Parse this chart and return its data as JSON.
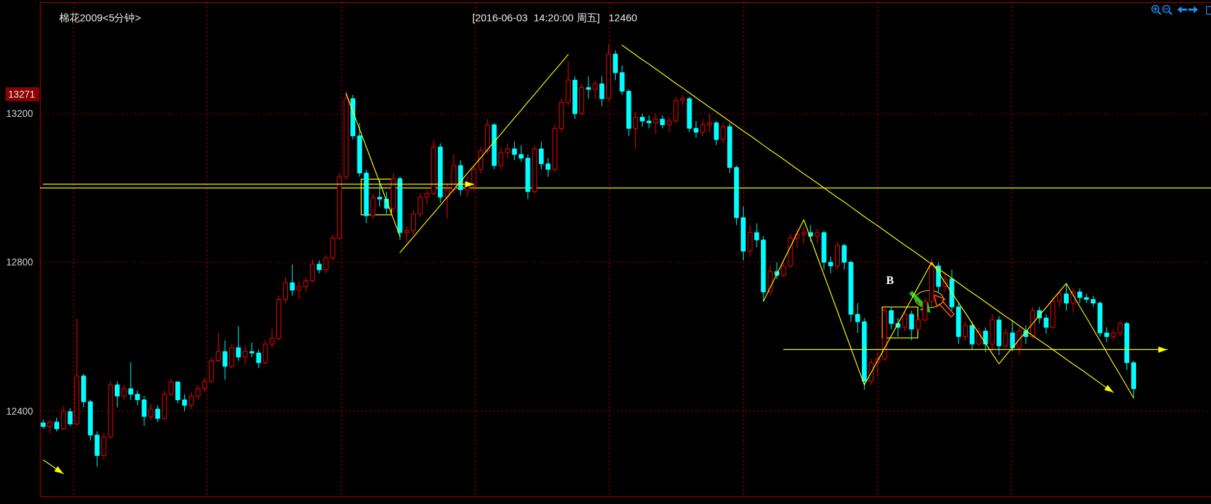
{
  "chart_data": {
    "type": "candlestick",
    "title": "棉花2009<5分钟>",
    "subtitle": "[2016-06-03  14:20:00 周五]   12460",
    "categories": [
      null,
      null,
      null,
      null,
      null,
      null,
      null,
      null,
      null,
      null,
      null,
      null,
      null,
      null,
      null,
      null,
      null,
      null,
      null,
      null,
      null,
      null,
      null,
      null,
      null,
      null,
      null,
      null,
      null,
      null,
      null,
      null,
      null,
      null,
      null,
      null,
      null,
      null,
      null,
      null,
      null,
      null,
      null,
      null,
      null,
      null,
      null,
      null,
      null,
      null,
      null,
      null,
      null,
      null,
      null,
      null,
      null,
      null,
      null,
      null,
      null,
      null,
      null,
      null,
      null,
      null,
      null,
      null,
      null,
      null,
      null,
      null,
      null,
      null,
      null,
      null,
      null,
      null,
      null,
      null,
      null,
      null,
      null,
      null,
      null,
      null,
      null,
      null,
      null,
      null,
      null,
      null,
      null,
      null,
      null,
      null,
      null,
      null,
      null,
      null,
      null,
      null,
      null,
      null,
      null,
      null,
      null,
      null,
      null,
      null,
      null,
      null,
      null,
      null,
      null,
      null,
      null,
      null,
      null,
      null,
      null,
      null,
      null,
      null,
      null,
      null,
      null,
      null,
      null,
      null,
      null,
      null,
      null,
      null,
      null,
      null,
      null,
      null,
      null,
      null,
      null,
      null,
      null,
      null,
      null,
      null,
      null,
      null,
      null,
      null,
      null,
      null,
      null,
      null,
      null,
      null,
      null,
      null,
      null,
      null,
      null,
      null,
      null,
      null,
      null,
      null,
      null,
      null,
      null,
      null,
      null,
      null,
      null,
      null
    ],
    "ohlc": [
      [
        12368,
        12378,
        12352,
        12358
      ],
      [
        12358,
        12375,
        12340,
        12370
      ],
      [
        12370,
        12382,
        12345,
        12352
      ],
      [
        12352,
        12412,
        12348,
        12398
      ],
      [
        12398,
        12408,
        12360,
        12365
      ],
      [
        12365,
        12649,
        12360,
        12494
      ],
      [
        12494,
        12500,
        12410,
        12425
      ],
      [
        12425,
        12430,
        12320,
        12335
      ],
      [
        12335,
        12345,
        12250,
        12280
      ],
      [
        12280,
        12340,
        12268,
        12330
      ],
      [
        12330,
        12480,
        12325,
        12470
      ],
      [
        12470,
        12480,
        12410,
        12440
      ],
      [
        12440,
        12470,
        12430,
        12460
      ],
      [
        12460,
        12531,
        12430,
        12445
      ],
      [
        12445,
        12455,
        12415,
        12430
      ],
      [
        12430,
        12440,
        12360,
        12385
      ],
      [
        12385,
        12420,
        12375,
        12405
      ],
      [
        12405,
        12415,
        12370,
        12380
      ],
      [
        12380,
        12455,
        12375,
        12445
      ],
      [
        12445,
        12486,
        12440,
        12478
      ],
      [
        12478,
        12480,
        12420,
        12430
      ],
      [
        12430,
        12445,
        12400,
        12415
      ],
      [
        12415,
        12450,
        12405,
        12440
      ],
      [
        12440,
        12470,
        12430,
        12460
      ],
      [
        12460,
        12490,
        12450,
        12480
      ],
      [
        12480,
        12545,
        12475,
        12535
      ],
      [
        12535,
        12610,
        12530,
        12560
      ],
      [
        12560,
        12590,
        12484,
        12520
      ],
      [
        12520,
        12580,
        12515,
        12570
      ],
      [
        12570,
        12628,
        12535,
        12545
      ],
      [
        12545,
        12575,
        12525,
        12560
      ],
      [
        12560,
        12584,
        12545,
        12556
      ],
      [
        12556,
        12565,
        12515,
        12530
      ],
      [
        12530,
        12590,
        12525,
        12580
      ],
      [
        12580,
        12620,
        12570,
        12595
      ],
      [
        12595,
        12710,
        12590,
        12700
      ],
      [
        12700,
        12760,
        12690,
        12745
      ],
      [
        12745,
        12794,
        12710,
        12725
      ],
      [
        12725,
        12750,
        12700,
        12735
      ],
      [
        12735,
        12760,
        12720,
        12750
      ],
      [
        12750,
        12808,
        12745,
        12795
      ],
      [
        12795,
        12805,
        12770,
        12780
      ],
      [
        12780,
        12820,
        12770,
        12812
      ],
      [
        12812,
        12875,
        12805,
        12865
      ],
      [
        12865,
        13040,
        12860,
        13030
      ],
      [
        13030,
        13260,
        13020,
        13240
      ],
      [
        13240,
        13250,
        13130,
        13140
      ],
      [
        13140,
        13175,
        13030,
        13040
      ],
      [
        13040,
        13050,
        12905,
        12925
      ],
      [
        12925,
        12985,
        12915,
        12975
      ],
      [
        12975,
        13020,
        12950,
        12970
      ],
      [
        12970,
        12990,
        12930,
        12945
      ],
      [
        12945,
        13040,
        12935,
        13025
      ],
      [
        13025,
        13030,
        12860,
        12880
      ],
      [
        12880,
        12895,
        12855,
        12885
      ],
      [
        12885,
        12940,
        12875,
        12930
      ],
      [
        12930,
        12985,
        12920,
        12975
      ],
      [
        12975,
        12995,
        12955,
        12985
      ],
      [
        12985,
        13130,
        12980,
        13110
      ],
      [
        13110,
        13120,
        12960,
        12975
      ],
      [
        12975,
        13010,
        12918,
        12995
      ],
      [
        12995,
        13090,
        12985,
        13060
      ],
      [
        13060,
        13075,
        12980,
        12995
      ],
      [
        12995,
        13030,
        12975,
        13005
      ],
      [
        13005,
        13060,
        12990,
        13050
      ],
      [
        13050,
        13110,
        13040,
        13100
      ],
      [
        13100,
        13185,
        13090,
        13170
      ],
      [
        13170,
        13175,
        13050,
        13060
      ],
      [
        13060,
        13110,
        13050,
        13095
      ],
      [
        13095,
        13120,
        13080,
        13105
      ],
      [
        13105,
        13125,
        13075,
        13090
      ],
      [
        13090,
        13115,
        13070,
        13080
      ],
      [
        13080,
        13090,
        12970,
        12990
      ],
      [
        12990,
        13115,
        12985,
        13105
      ],
      [
        13105,
        13125,
        13050,
        13065
      ],
      [
        13065,
        13080,
        13030,
        13050
      ],
      [
        13050,
        13170,
        13045,
        13160
      ],
      [
        13160,
        13240,
        13150,
        13230
      ],
      [
        13230,
        13342,
        13220,
        13290
      ],
      [
        13290,
        13300,
        13185,
        13200
      ],
      [
        13200,
        13280,
        13195,
        13270
      ],
      [
        13270,
        13300,
        13240,
        13265
      ],
      [
        13265,
        13290,
        13240,
        13280
      ],
      [
        13280,
        13300,
        13220,
        13240
      ],
      [
        13240,
        13386,
        13235,
        13360
      ],
      [
        13360,
        13370,
        13290,
        13310
      ],
      [
        13310,
        13330,
        13250,
        13260
      ],
      [
        13260,
        13265,
        13140,
        13160
      ],
      [
        13160,
        13205,
        13105,
        13190
      ],
      [
        13190,
        13200,
        13165,
        13180
      ],
      [
        13180,
        13195,
        13160,
        13175
      ],
      [
        13175,
        13200,
        13145,
        13185
      ],
      [
        13185,
        13195,
        13160,
        13170
      ],
      [
        13170,
        13190,
        13150,
        13180
      ],
      [
        13180,
        13245,
        13175,
        13235
      ],
      [
        13235,
        13250,
        13220,
        13240
      ],
      [
        13240,
        13245,
        13150,
        13160
      ],
      [
        13160,
        13180,
        13135,
        13150
      ],
      [
        13150,
        13185,
        13140,
        13170
      ],
      [
        13170,
        13200,
        13150,
        13175
      ],
      [
        13175,
        13180,
        13115,
        13130
      ],
      [
        13130,
        13175,
        13120,
        13165
      ],
      [
        13165,
        13175,
        13040,
        13055
      ],
      [
        13055,
        13060,
        12900,
        12920
      ],
      [
        12920,
        12950,
        12805,
        12830
      ],
      [
        12830,
        12900,
        12815,
        12880
      ],
      [
        12880,
        12905,
        12840,
        12860
      ],
      [
        12860,
        12870,
        12695,
        12720
      ],
      [
        12720,
        12790,
        12710,
        12775
      ],
      [
        12775,
        12800,
        12755,
        12765
      ],
      [
        12765,
        12800,
        12760,
        12790
      ],
      [
        12790,
        12875,
        12785,
        12865
      ],
      [
        12865,
        12890,
        12840,
        12875
      ],
      [
        12875,
        12895,
        12850,
        12880
      ],
      [
        12880,
        12900,
        12855,
        12870
      ],
      [
        12870,
        12890,
        12850,
        12880
      ],
      [
        12880,
        12885,
        12780,
        12800
      ],
      [
        12800,
        12815,
        12770,
        12790
      ],
      [
        12790,
        12855,
        12780,
        12845
      ],
      [
        12845,
        12850,
        12780,
        12800
      ],
      [
        12800,
        12805,
        12640,
        12660
      ],
      [
        12660,
        12690,
        12610,
        12640
      ],
      [
        12640,
        12650,
        12457,
        12480
      ],
      [
        12480,
        12540,
        12470,
        12530
      ],
      [
        12530,
        12560,
        12495,
        12540
      ],
      [
        12540,
        12685,
        12535,
        12670
      ],
      [
        12670,
        12680,
        12620,
        12635
      ],
      [
        12635,
        12650,
        12600,
        12625
      ],
      [
        12625,
        12670,
        12615,
        12660
      ],
      [
        12660,
        12670,
        12590,
        12620
      ],
      [
        12620,
        12655,
        12615,
        12645
      ],
      [
        12645,
        12705,
        12640,
        12695
      ],
      [
        12695,
        12810,
        12680,
        12790
      ],
      [
        12790,
        12800,
        12720,
        12735
      ],
      [
        12735,
        12770,
        12720,
        12755
      ],
      [
        12755,
        12780,
        12670,
        12680
      ],
      [
        12680,
        12690,
        12580,
        12600
      ],
      [
        12600,
        12640,
        12590,
        12630
      ],
      [
        12630,
        12640,
        12565,
        12580
      ],
      [
        12580,
        12625,
        12575,
        12615
      ],
      [
        12615,
        12625,
        12558,
        12580
      ],
      [
        12580,
        12660,
        12560,
        12645
      ],
      [
        12645,
        12655,
        12550,
        12575
      ],
      [
        12575,
        12620,
        12570,
        12610
      ],
      [
        12610,
        12645,
        12560,
        12570
      ],
      [
        12570,
        12625,
        12550,
        12615
      ],
      [
        12615,
        12630,
        12580,
        12600
      ],
      [
        12600,
        12680,
        12595,
        12670
      ],
      [
        12670,
        12680,
        12635,
        12650
      ],
      [
        12650,
        12660,
        12608,
        12625
      ],
      [
        12625,
        12705,
        12620,
        12695
      ],
      [
        12695,
        12725,
        12680,
        12715
      ],
      [
        12715,
        12743,
        12670,
        12690
      ],
      [
        12690,
        12730,
        12665,
        12720
      ],
      [
        12720,
        12730,
        12690,
        12705
      ],
      [
        12705,
        12715,
        12690,
        12700
      ],
      [
        12700,
        12710,
        12680,
        12690
      ],
      [
        12690,
        12695,
        12600,
        12610
      ],
      [
        12610,
        12625,
        12585,
        12600
      ],
      [
        12600,
        12620,
        12590,
        12610
      ],
      [
        12610,
        12643,
        12600,
        12635
      ],
      [
        12635,
        12640,
        12510,
        12530
      ],
      [
        12530,
        12535,
        12435,
        12460
      ],
      null,
      null,
      null,
      null,
      null,
      null,
      null,
      null,
      null,
      null,
      null
    ],
    "colors": [
      "#00ffff",
      "#ff0000",
      "#00ffff",
      "#ff0000",
      "#00ffff",
      "#ff0000",
      "#00ffff",
      "#00ffff",
      "#00ffff",
      "#ff0000",
      "#ff0000",
      "#00ffff",
      "#ff0000",
      "#00ffff",
      "#00ffff",
      "#00ffff",
      "#ff0000",
      "#00ffff",
      "#ff0000",
      "#ff0000",
      "#00ffff",
      "#00ffff",
      "#ff0000",
      "#ff0000",
      "#ff0000",
      "#ff0000",
      "#ff0000",
      "#00ffff",
      "#ff0000",
      "#00ffff",
      "#ff0000",
      "#00ffff",
      "#00ffff",
      "#ff0000",
      "#ff0000",
      "#ff0000",
      "#ff0000",
      "#00ffff",
      "#ff0000",
      "#ff0000",
      "#ff0000",
      "#00ffff",
      "#ff0000",
      "#ff0000",
      "#ff0000",
      "#ff0000",
      "#00ffff",
      "#00ffff",
      "#00ffff",
      "#ff0000",
      "#00ffff",
      "#00ffff",
      "#ff0000",
      "#00ffff",
      "#ff0000",
      "#ff0000",
      "#ff0000",
      "#ff0000",
      "#ff0000",
      "#00ffff",
      "#ff0000",
      "#ff0000",
      "#00ffff",
      "#ff0000",
      "#ff0000",
      "#ff0000",
      "#ff0000",
      "#00ffff",
      "#ff0000",
      "#ff0000",
      "#00ffff",
      "#00ffff",
      "#00ffff",
      "#ff0000",
      "#00ffff",
      "#00ffff",
      "#ff0000",
      "#ff0000",
      "#ff0000",
      "#00ffff",
      "#ff0000",
      "#00ffff",
      "#ff0000",
      "#00ffff",
      "#ff0000",
      "#00ffff",
      "#00ffff",
      "#00ffff",
      "#ff0000",
      "#00ffff",
      "#00ffff",
      "#ff0000",
      "#00ffff",
      "#ff0000",
      "#ff0000",
      "#ff0000",
      "#00ffff",
      "#00ffff",
      "#ff0000",
      "#ff0000",
      "#00ffff",
      "#ff0000",
      "#00ffff",
      "#00ffff",
      "#00ffff",
      "#ff0000",
      "#00ffff",
      "#00ffff",
      "#ff0000",
      "#00ffff",
      "#ff0000",
      "#ff0000",
      "#ff0000",
      "#ff0000",
      "#00ffff",
      "#ff0000",
      "#00ffff",
      "#00ffff",
      "#ff0000",
      "#00ffff",
      "#00ffff",
      "#00ffff",
      "#00ffff",
      "#ff0000",
      "#ff0000",
      "#ff0000",
      "#00ffff",
      "#00ffff",
      "#ff0000",
      "#00ffff",
      "#ff0000",
      "#ff0000",
      "#ff0000",
      "#00ffff",
      "#ff0000",
      "#00ffff",
      "#00ffff",
      "#ff0000",
      "#00ffff",
      "#ff0000",
      "#00ffff",
      "#ff0000",
      "#00ffff",
      "#ff0000",
      "#00ffff",
      "#ff0000",
      "#00ffff",
      "#ff0000",
      "#00ffff",
      "#00ffff",
      "#ff0000",
      "#ff0000",
      "#00ffff",
      "#ff0000",
      "#00ffff",
      "#00ffff",
      "#00ffff",
      "#00ffff",
      "#00ffff",
      "#ff0000",
      "#ff0000",
      "#00ffff",
      "#00ffff",
      null,
      null,
      null,
      null,
      null,
      null,
      null,
      null,
      null,
      null,
      null
    ],
    "series": [
      {
        "type": "line",
        "color": "#ffff00",
        "values": [
          null,
          null,
          null,
          null,
          null,
          null,
          null,
          null,
          null,
          null,
          null,
          null,
          null,
          null,
          null,
          null,
          null,
          null,
          null,
          null,
          null,
          null,
          null,
          null,
          null,
          null,
          null,
          null,
          null,
          null,
          null,
          null,
          null,
          null,
          null,
          null,
          null,
          null,
          null,
          null,
          null,
          null,
          null,
          null,
          null,
          13254,
          13206,
          13158,
          13110,
          13062,
          13014,
          12966,
          12918,
          12870,
          null,
          null,
          null,
          null,
          null,
          null,
          null,
          null,
          null,
          null,
          null,
          null,
          null,
          null,
          null,
          null,
          null,
          null,
          null,
          null,
          null,
          null,
          null,
          null,
          null,
          null,
          null,
          null,
          null,
          null,
          null,
          null,
          null,
          null,
          null,
          null,
          null,
          null,
          null,
          null,
          null,
          null,
          null,
          null,
          null,
          null,
          null,
          null,
          null,
          null,
          null,
          null,
          null,
          null,
          null,
          null,
          null,
          null,
          null,
          null,
          null,
          null,
          null,
          null,
          null,
          null,
          null,
          null,
          null,
          null,
          null,
          null,
          null,
          null,
          null,
          null,
          null,
          null,
          null,
          null,
          null,
          null,
          null,
          null,
          null,
          null,
          null,
          null,
          null,
          null,
          null,
          null,
          null,
          null,
          null,
          null,
          null,
          null,
          null,
          null,
          null,
          null,
          null,
          null,
          null,
          null,
          null,
          null,
          null,
          null,
          null,
          null,
          null,
          null,
          null,
          null,
          null,
          null,
          null,
          null
        ]
      },
      {
        "type": "line",
        "color": "#ffff00",
        "values": [
          null,
          null,
          null,
          null,
          null,
          null,
          null,
          null,
          null,
          null,
          null,
          null,
          null,
          null,
          null,
          null,
          null,
          null,
          null,
          null,
          null,
          null,
          null,
          null,
          null,
          null,
          null,
          null,
          null,
          null,
          null,
          null,
          null,
          null,
          null,
          null,
          null,
          null,
          null,
          null,
          null,
          null,
          null,
          null,
          null,
          null,
          null,
          null,
          null,
          null,
          null,
          null,
          null,
          12826,
          12847,
          12868,
          12890,
          12911,
          12932,
          12953,
          12975,
          12996,
          13017,
          13039,
          13060,
          13081,
          13103,
          13124,
          13145,
          13167,
          13188,
          13209,
          13231,
          13252,
          13273,
          13295,
          13316,
          13337,
          13359,
          null,
          null,
          null,
          null,
          null,
          null,
          null,
          null,
          null,
          null,
          null,
          null,
          null,
          null,
          null,
          null,
          null,
          null,
          null,
          null,
          null,
          null,
          null,
          null,
          null,
          null,
          null,
          null,
          null,
          null,
          null,
          null,
          null,
          null,
          null,
          null,
          null,
          null,
          null,
          null,
          null,
          null,
          null,
          null,
          null,
          null,
          null,
          null,
          null,
          null,
          null,
          null,
          null,
          null,
          null,
          null,
          null,
          null,
          null,
          null,
          null,
          null,
          null,
          null,
          null,
          null,
          null,
          null,
          null,
          null,
          null,
          null,
          null,
          null,
          null,
          null,
          null,
          null,
          null,
          null,
          null,
          null,
          null,
          null,
          null,
          null,
          null,
          null,
          null,
          null,
          null,
          null,
          null,
          null,
          null
        ]
      },
      {
        "type": "line",
        "color": "#ffff00",
        "values": [
          13010,
          13010,
          13010,
          13010,
          13010,
          13010,
          13010,
          13010,
          13010,
          13010,
          13010,
          13010,
          13010,
          13010,
          13010,
          13010,
          13010,
          13010,
          13010,
          13010,
          13010,
          13010,
          13010,
          13010,
          13010,
          13010,
          13010,
          13010,
          13010,
          13010,
          13010,
          13010,
          13010,
          13010,
          13010,
          13010,
          13010,
          13010,
          13010,
          13010,
          13010,
          13010,
          13010,
          13010,
          13010,
          13010,
          13010,
          13010,
          13010,
          13010,
          13010,
          13010,
          13010,
          13010,
          13010,
          13010,
          13010,
          13010,
          13010,
          13010,
          13010,
          13010,
          13010,
          13010,
          13010,
          null,
          null,
          null,
          null,
          null,
          null,
          null,
          null,
          null,
          null,
          null,
          null,
          null,
          null,
          null,
          null,
          null,
          null,
          null,
          null,
          null,
          null,
          null,
          null,
          null,
          null,
          null,
          null,
          null,
          null,
          null,
          null,
          null,
          null,
          null,
          null,
          null,
          null,
          null,
          null,
          null,
          null,
          null,
          null,
          null,
          null,
          null,
          null,
          null,
          null,
          null,
          null,
          null,
          null,
          null,
          null,
          null,
          null,
          null,
          null,
          null,
          null,
          null,
          null,
          null,
          null,
          null,
          null,
          null,
          null,
          null,
          null,
          null,
          null,
          null,
          null,
          null,
          null,
          null,
          null,
          null,
          null,
          null,
          null,
          null,
          null,
          null,
          null,
          null,
          null,
          null,
          null,
          null,
          null,
          null,
          null,
          null,
          null,
          null,
          null,
          null,
          null,
          null,
          null,
          null,
          null,
          null,
          null,
          null
        ]
      },
      {
        "type": "line",
        "color": "#ffff00",
        "values": [
          null,
          null,
          null,
          null,
          null,
          null,
          null,
          null,
          null,
          null,
          null,
          null,
          null,
          null,
          null,
          null,
          null,
          null,
          null,
          null,
          null,
          null,
          null,
          null,
          null,
          null,
          null,
          null,
          null,
          null,
          null,
          null,
          null,
          null,
          null,
          null,
          null,
          null,
          null,
          null,
          null,
          null,
          null,
          null,
          null,
          null,
          null,
          null,
          null,
          null,
          null,
          null,
          null,
          null,
          null,
          null,
          null,
          null,
          null,
          null,
          null,
          null,
          null,
          null,
          null,
          null,
          null,
          null,
          null,
          null,
          null,
          null,
          null,
          null,
          null,
          null,
          null,
          null,
          null,
          null,
          null,
          null,
          null,
          null,
          null,
          null,
          13384,
          13371,
          13358,
          13345,
          13333,
          13320,
          13307,
          13294,
          13281,
          13269,
          13256,
          13243,
          13230,
          13217,
          13205,
          13192,
          13179,
          13166,
          13153,
          13141,
          13128,
          13115,
          13102,
          13090,
          13077,
          13064,
          13051,
          13038,
          13026,
          13013,
          13000,
          12987,
          12974,
          12962,
          12949,
          12936,
          12923,
          12910,
          12898,
          12885,
          12872,
          12859,
          12846,
          12834,
          12821,
          12808,
          12795,
          12782,
          12770,
          12757,
          12744,
          12731,
          12718,
          12706,
          12693,
          12680,
          12667,
          12654,
          12642,
          12629,
          12616,
          12603,
          12590,
          12578,
          12565,
          12552,
          12539,
          12526,
          12514,
          12501,
          12488,
          12475,
          12462,
          12450,
          null,
          null,
          null,
          null,
          null,
          null,
          null,
          null,
          null,
          null,
          null,
          null,
          null,
          null
        ]
      },
      {
        "type": "line",
        "color": "#ffff00",
        "values": [
          null,
          null,
          null,
          null,
          null,
          null,
          null,
          null,
          null,
          null,
          null,
          null,
          null,
          null,
          null,
          null,
          null,
          null,
          null,
          null,
          null,
          null,
          null,
          null,
          null,
          null,
          null,
          null,
          null,
          null,
          null,
          null,
          null,
          null,
          null,
          null,
          null,
          null,
          null,
          null,
          null,
          null,
          null,
          null,
          null,
          null,
          null,
          null,
          null,
          null,
          null,
          null,
          null,
          null,
          null,
          null,
          null,
          null,
          null,
          null,
          null,
          null,
          null,
          null,
          null,
          null,
          null,
          null,
          null,
          null,
          null,
          null,
          null,
          null,
          null,
          null,
          null,
          null,
          null,
          null,
          null,
          null,
          null,
          null,
          null,
          null,
          null,
          null,
          null,
          null,
          null,
          null,
          null,
          null,
          null,
          null,
          null,
          null,
          null,
          null,
          null,
          null,
          null,
          null,
          null,
          null,
          null,
          12695,
          12732,
          12768,
          12805,
          12841,
          12878,
          12914,
          12865,
          12815,
          12766,
          12717,
          12668,
          12618,
          12569,
          12519,
          12470,
          12503,
          12536,
          12569,
          12602,
          12635,
          12668,
          12701,
          12734,
          12767,
          12800,
          12773,
          12745,
          12718,
          12691,
          12664,
          12636,
          12609,
          12582,
          12554,
          12527,
          12549,
          12570,
          12592,
          12613,
          12635,
          12657,
          12678,
          12700,
          12721,
          12743,
          12712,
          12681,
          12651,
          12620,
          12589,
          12558,
          12527,
          12497,
          12466,
          12435,
          null,
          null,
          null,
          null,
          null,
          null,
          null,
          null,
          null,
          null,
          null
        ]
      },
      {
        "type": "line",
        "color": "#ffff00",
        "values": [
          null,
          null,
          null,
          null,
          null,
          null,
          null,
          null,
          null,
          null,
          null,
          null,
          null,
          null,
          null,
          null,
          null,
          null,
          null,
          null,
          null,
          null,
          null,
          null,
          null,
          null,
          null,
          null,
          null,
          null,
          null,
          null,
          null,
          null,
          null,
          null,
          null,
          null,
          null,
          null,
          null,
          null,
          null,
          null,
          null,
          null,
          null,
          null,
          null,
          null,
          null,
          null,
          null,
          null,
          null,
          null,
          null,
          null,
          null,
          null,
          null,
          null,
          null,
          null,
          null,
          null,
          null,
          null,
          null,
          null,
          null,
          null,
          null,
          null,
          null,
          null,
          null,
          null,
          null,
          null,
          null,
          null,
          null,
          null,
          null,
          null,
          null,
          null,
          null,
          null,
          null,
          null,
          null,
          null,
          null,
          null,
          null,
          null,
          null,
          null,
          null,
          null,
          null,
          null,
          null,
          null,
          null,
          null,
          null,
          null,
          12565,
          12565,
          12565,
          12565,
          12565,
          12565,
          12565,
          12565,
          12565,
          12565,
          12565,
          12565,
          12565,
          12565,
          12565,
          12565,
          12565,
          12565,
          12565,
          12565,
          12565,
          12565,
          12565,
          12565,
          12565,
          12565,
          12565,
          12565,
          12565,
          12565,
          12565,
          12565,
          12565,
          12565,
          12565,
          12565,
          12565,
          12565,
          12565,
          12565,
          12565,
          12565,
          12565,
          12565,
          12565,
          12565,
          12565,
          12565,
          12565,
          12565,
          12565,
          12565,
          12565,
          12565,
          12565,
          12565,
          12565,
          12565,
          null,
          null,
          null,
          null,
          null,
          null
        ]
      },
      {
        "type": "line",
        "color": "#ffff00",
        "values": [
          12268,
          12256,
          12243,
          12231,
          null,
          null,
          null,
          null,
          null,
          null,
          null,
          null,
          null,
          null,
          null,
          null,
          null,
          null,
          null,
          null,
          null,
          null,
          null,
          null,
          null,
          null,
          null,
          null,
          null,
          null,
          null,
          null,
          null,
          null,
          null,
          null,
          null,
          null,
          null,
          null,
          null,
          null,
          null,
          null,
          null,
          null,
          null,
          null,
          null,
          null,
          null,
          null,
          null,
          null,
          null,
          null,
          null,
          null,
          null,
          null,
          null,
          null,
          null,
          null,
          null,
          null,
          null,
          null,
          null,
          null,
          null,
          null,
          null,
          null,
          null,
          null,
          null,
          null,
          null,
          null,
          null,
          null,
          null,
          null,
          null,
          null,
          null,
          null,
          null,
          null,
          null,
          null,
          null,
          null,
          null,
          null,
          null,
          null,
          null,
          null,
          null,
          null,
          null,
          null,
          null,
          null,
          null,
          null,
          null,
          null,
          null,
          null,
          null,
          null,
          null,
          null,
          null,
          null,
          null,
          null,
          null,
          null,
          null,
          null,
          null,
          null,
          null,
          null,
          null,
          null,
          null,
          null,
          null,
          null,
          null,
          null,
          null,
          null,
          null,
          null,
          null,
          null,
          null,
          null,
          null,
          null,
          null,
          null,
          null,
          null,
          null,
          null,
          null,
          null,
          null,
          null,
          null,
          null,
          null,
          null,
          null,
          null,
          null,
          null,
          null,
          null,
          null,
          null,
          null,
          null,
          null,
          null,
          null,
          null
        ]
      }
    ],
    "ref_lines": [
      {
        "axis": "y",
        "value": 13000,
        "color": "#ffff00"
      }
    ],
    "annotations": [
      "13271",
      "B"
    ],
    "ylim": [
      12170,
      13500
    ],
    "yticks": [
      12400,
      12800,
      13200
    ],
    "tick_labels": "y",
    "grid": "y"
  }
}
